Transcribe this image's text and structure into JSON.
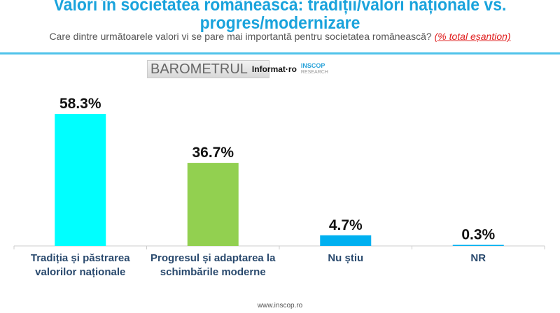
{
  "header": {
    "title": "Valori în societatea românească: tradiții/valori naționale vs. progres/modernizare",
    "subtitle": "Care dintre următoarele valori vi se pare mai importantă pentru societatea românească?",
    "subtitle_note": "(% total eșantion)"
  },
  "logo": {
    "barometrul": "BAROMETRUL",
    "informat": "Informat·ro",
    "inscop": "INSCOP",
    "research": "RESEARCH"
  },
  "footer": "www.inscop.ro",
  "colors": {
    "title": "#1aa3dc",
    "bar1": "#00ffff",
    "bar2": "#92d050",
    "bar3": "#00b0f0",
    "bar4": "#00b0f0"
  },
  "chart_data": {
    "type": "bar",
    "categories": [
      "Tradiția și păstrarea valorilor naționale",
      "Progresul și adaptarea la schimbările moderne",
      "Nu știu",
      "NR"
    ],
    "values": [
      58.3,
      36.7,
      4.7,
      0.3
    ],
    "labels": [
      "58.3%",
      "36.7%",
      "4.7%",
      "0.3%"
    ],
    "colors": [
      "#00ffff",
      "#92d050",
      "#00b0f0",
      "#00b0f0"
    ],
    "unit": "%",
    "grid": false
  }
}
